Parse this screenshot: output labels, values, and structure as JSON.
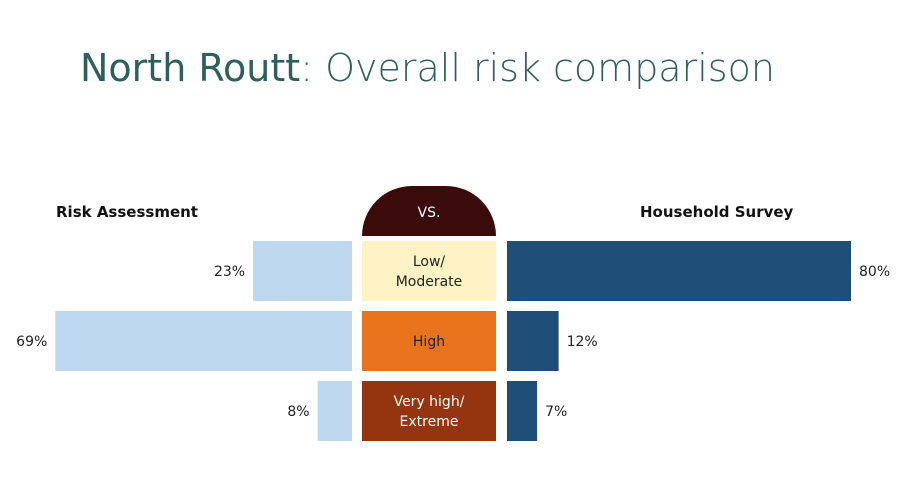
{
  "title": {
    "lead": "North Routt",
    "rest": ": Overall risk comparison"
  },
  "center_header": "VS.",
  "chart_data": {
    "type": "bar",
    "categories": [
      "Low/\nModerate",
      "High",
      "Very high/\nExtreme"
    ],
    "series": [
      {
        "name": "Risk Assessment",
        "values": [
          23,
          69,
          8
        ],
        "labels": [
          "23%",
          "69%",
          "8%"
        ],
        "color": "#bdd7ee"
      },
      {
        "name": "Household Survey",
        "values": [
          80,
          12,
          7
        ],
        "labels": [
          "80%",
          "12%",
          "7%"
        ],
        "color": "#1f4e79"
      }
    ],
    "category_colors": [
      "#fff2c4",
      "#e8731c",
      "#943510"
    ],
    "category_text_colors": [
      "#222222",
      "#222222",
      "#ffffff"
    ],
    "xlim": [
      0,
      100
    ],
    "orientation": "butterfly"
  }
}
